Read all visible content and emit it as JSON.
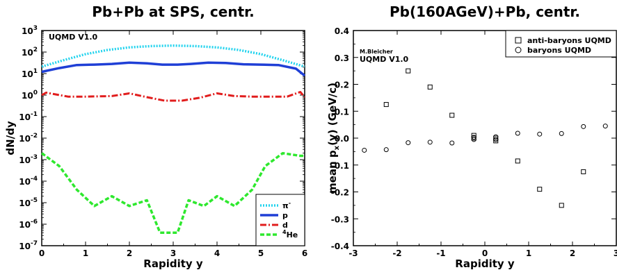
{
  "chart_data": [
    {
      "type": "line",
      "title": "Pb+Pb at SPS, centr.",
      "xlabel": "Rapidity y",
      "ylabel": "dN/dy",
      "xlim": [
        0,
        6
      ],
      "ylim": [
        1e-07,
        1000
      ],
      "yscale": "log",
      "x_ticks": [
        "0",
        "1",
        "2",
        "3",
        "4",
        "5",
        "6"
      ],
      "y_ticks": [
        "10-7",
        "10-6",
        "10-5",
        "10-4",
        "10-3",
        "10-2",
        "10-1",
        "100",
        "101",
        "102",
        "103"
      ],
      "annotation": "UQMD V1.0",
      "legend": {
        "position": "bottom-right",
        "entries": [
          "π-",
          "p",
          "d",
          "4He"
        ]
      },
      "series": [
        {
          "name": "π-",
          "color": "#22d3ee",
          "style": "dotted",
          "x": [
            0,
            0.5,
            1,
            1.5,
            2,
            2.5,
            3,
            3.5,
            4,
            4.5,
            5,
            5.5,
            6
          ],
          "y": [
            21,
            42,
            80,
            125,
            165,
            190,
            200,
            190,
            165,
            125,
            80,
            42,
            21
          ]
        },
        {
          "name": "p",
          "color": "#1f3fd6",
          "style": "solid",
          "x": [
            0,
            0.4,
            0.8,
            1.2,
            1.6,
            2.0,
            2.4,
            2.75,
            3.1,
            3.4,
            3.8,
            4.2,
            4.6,
            5.0,
            5.4,
            5.8,
            6.0
          ],
          "y": [
            12,
            18,
            25,
            26,
            28,
            32,
            30,
            26,
            26,
            28,
            32,
            31,
            27,
            26,
            25,
            17,
            8
          ]
        },
        {
          "name": "d",
          "color": "#e11d1d",
          "style": "dashdot",
          "x": [
            0,
            0.1,
            0.6,
            1.0,
            1.6,
            2.0,
            2.4,
            2.8,
            3.2,
            3.6,
            4.0,
            4.4,
            4.8,
            5.2,
            5.6,
            5.9,
            6.0
          ],
          "y": [
            1.0,
            1.3,
            0.85,
            0.85,
            0.9,
            1.2,
            0.8,
            0.55,
            0.55,
            0.75,
            1.2,
            0.9,
            0.85,
            0.85,
            0.85,
            1.4,
            0.8
          ]
        },
        {
          "name": "4He",
          "color": "#2ee82e",
          "style": "dashed",
          "x": [
            0,
            0.4,
            0.8,
            1.2,
            1.6,
            2.0,
            2.4,
            2.7,
            3.1,
            3.35,
            3.7,
            4.0,
            4.4,
            4.8,
            5.1,
            5.5,
            5.9,
            6.0
          ],
          "y": [
            0.002,
            0.0005,
            4e-05,
            7e-06,
            2e-05,
            7e-06,
            1.3e-05,
            4e-07,
            4e-07,
            1.3e-05,
            7e-06,
            2e-05,
            7e-06,
            4e-05,
            0.0005,
            0.002,
            0.0015,
            0.0015
          ]
        }
      ]
    },
    {
      "type": "scatter",
      "title": "Pb(160AGeV)+Pb, centr.",
      "xlabel": "Rapidity y",
      "ylabel": "mean px(y) (GeV/c)",
      "xlim": [
        -3,
        3
      ],
      "ylim": [
        -0.4,
        0.4
      ],
      "x_ticks": [
        "-3",
        "-2",
        "-1",
        "0",
        "1",
        "2",
        "3"
      ],
      "y_ticks": [
        "-0.4",
        "-0.3",
        "-0.2",
        "-0.1",
        "0.0",
        "0.1",
        "0.2",
        "0.3",
        "0.4"
      ],
      "annotations": [
        "M.Bleicher",
        "UQMD V1.0"
      ],
      "legend": {
        "position": "top-right",
        "entries": [
          "anti-baryons UQMD",
          "baryons UQMD"
        ]
      },
      "series": [
        {
          "name": "anti-baryons UQMD",
          "marker": "square",
          "x": [
            -2.25,
            -1.75,
            -1.25,
            -0.75,
            -0.25,
            -0.25,
            0.25,
            0.25,
            0.75,
            1.25,
            1.75,
            2.25
          ],
          "y": [
            0.125,
            0.25,
            0.19,
            0.085,
            0.01,
            0.0,
            0.0,
            -0.01,
            -0.085,
            -0.19,
            -0.25,
            -0.125
          ]
        },
        {
          "name": "baryons UQMD",
          "marker": "circle",
          "x": [
            -2.75,
            -2.25,
            -1.75,
            -1.25,
            -0.75,
            -0.25,
            -0.25,
            0.25,
            0.25,
            0.75,
            1.25,
            1.75,
            2.25,
            2.75
          ],
          "y": [
            -0.045,
            -0.043,
            -0.017,
            -0.015,
            -0.018,
            -0.005,
            0.003,
            0.005,
            -0.005,
            0.018,
            0.015,
            0.017,
            0.043,
            0.045
          ]
        }
      ]
    }
  ]
}
